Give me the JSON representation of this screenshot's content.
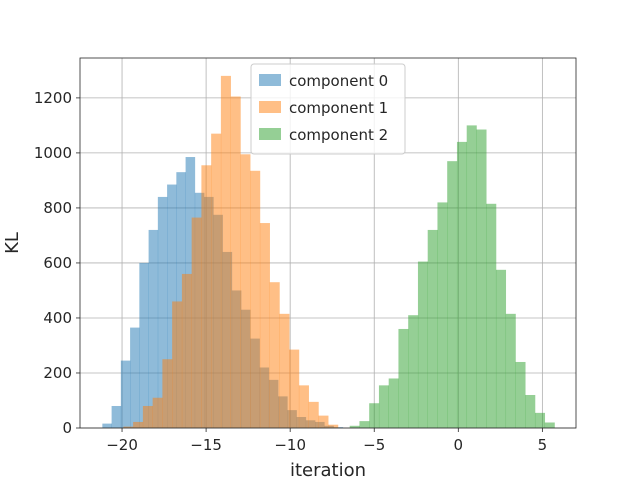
{
  "chart_data": {
    "type": "histogram",
    "title": "",
    "xlabel": "iteration",
    "ylabel": "KL",
    "xlim": [
      -22.5,
      7.0
    ],
    "ylim": [
      0,
      1345
    ],
    "xticks": [
      -20,
      -15,
      -10,
      -5,
      0,
      5
    ],
    "xtick_labels": [
      "−20",
      "−15",
      "−10",
      "−5",
      "0",
      "5"
    ],
    "yticks": [
      0,
      200,
      400,
      600,
      800,
      1000,
      1200
    ],
    "ytick_labels": [
      "0",
      "200",
      "400",
      "600",
      "800",
      "1000",
      "1200"
    ],
    "grid": true,
    "legend_position": "top-center",
    "series": [
      {
        "name": "component 0",
        "color": "#1f77b4",
        "opacity": 0.5,
        "edges": [
          -21.17,
          -20.62,
          -20.07,
          -19.52,
          -18.97,
          -18.42,
          -17.87,
          -17.32,
          -16.77,
          -16.22,
          -15.67,
          -15.12,
          -14.57,
          -14.02,
          -13.47,
          -12.92,
          -12.37,
          -11.82,
          -11.27,
          -10.72,
          -10.17,
          -9.62,
          -9.07,
          -8.52,
          -7.97,
          -7.42,
          -6.87
        ],
        "values": [
          16,
          80,
          245,
          365,
          600,
          720,
          840,
          885,
          930,
          985,
          855,
          840,
          775,
          640,
          500,
          430,
          325,
          220,
          175,
          115,
          65,
          40,
          28,
          22,
          8,
          3
        ]
      },
      {
        "name": "component 1",
        "color": "#ff7f0e",
        "opacity": 0.5,
        "edges": [
          -19.92,
          -19.34,
          -18.76,
          -18.18,
          -17.6,
          -17.02,
          -16.44,
          -15.86,
          -15.28,
          -14.7,
          -14.12,
          -13.54,
          -12.96,
          -12.38,
          -11.8,
          -11.22,
          -10.64,
          -10.06,
          -9.48,
          -8.9,
          -8.32,
          -7.74,
          -7.16
        ],
        "values": [
          5,
          22,
          80,
          110,
          250,
          460,
          560,
          765,
          955,
          1070,
          1280,
          1205,
          995,
          935,
          745,
          530,
          415,
          285,
          155,
          95,
          45,
          12
        ]
      },
      {
        "name": "component 2",
        "color": "#2ca02c",
        "opacity": 0.5,
        "edges": [
          -6.46,
          -5.88,
          -5.3,
          -4.72,
          -4.14,
          -3.56,
          -2.98,
          -2.4,
          -1.82,
          -1.24,
          -0.66,
          -0.08,
          0.5,
          1.08,
          1.66,
          2.24,
          2.82,
          3.4,
          3.98,
          4.56,
          5.14,
          5.72
        ],
        "values": [
          8,
          25,
          90,
          155,
          180,
          360,
          410,
          605,
          720,
          820,
          970,
          1040,
          1100,
          1085,
          815,
          575,
          415,
          240,
          120,
          55,
          20
        ]
      }
    ]
  }
}
